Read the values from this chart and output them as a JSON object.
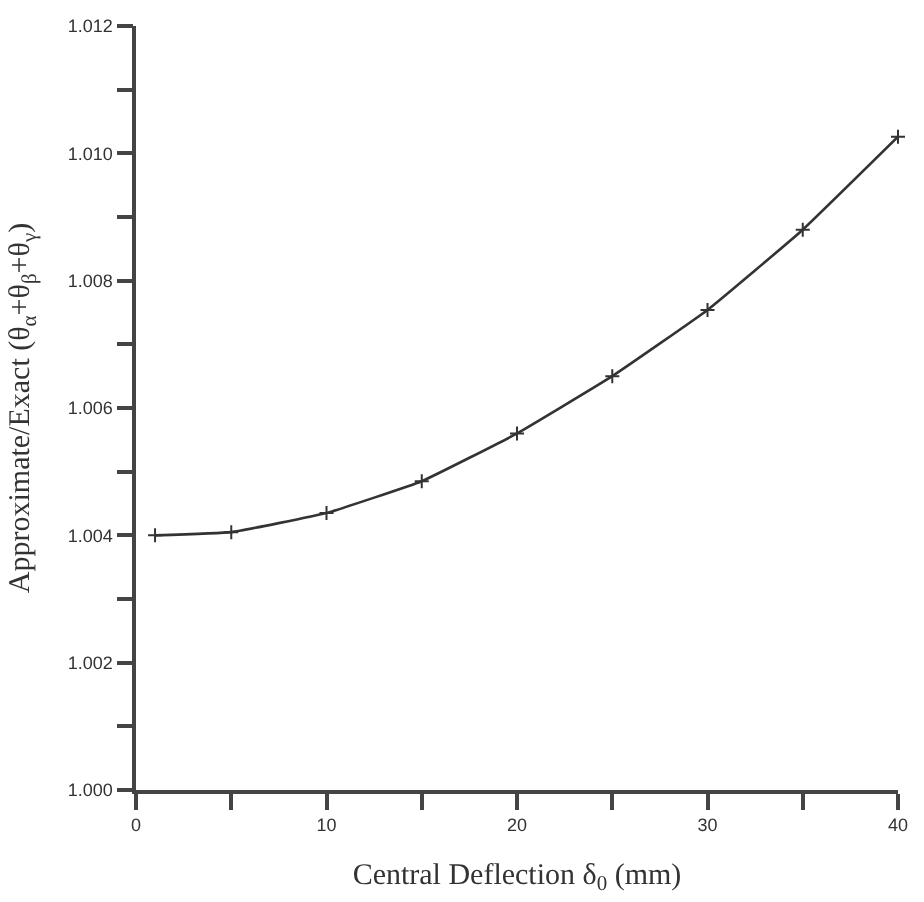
{
  "chart_data": {
    "type": "line",
    "xlabel": "Central Deflection δ$_{0}$ (mm)",
    "ylabel": "Approximate/Exact (θ$_{α}$+θ$_{β}$+θ$_{γ}$)",
    "x": [
      1,
      5,
      10,
      15,
      20,
      25,
      30,
      35,
      40
    ],
    "series": [
      {
        "color": "#333333",
        "values": [
          1.004,
          1.00405,
          1.00435,
          1.00485,
          1.0056,
          1.0065,
          1.00754,
          1.0088,
          1.01026
        ]
      }
    ],
    "xlim": [
      0,
      40
    ],
    "xticks": [
      0,
      {
        "value": 5,
        "label": null
      },
      10,
      {
        "value": 15,
        "label": null
      },
      20,
      {
        "value": 25,
        "label": null
      },
      30,
      {
        "value": 35,
        "label": null
      },
      40
    ],
    "ylim": [
      1.0,
      1.012
    ],
    "yticks": [
      {
        "value": 1.0,
        "label": "1.000"
      },
      {
        "value": 1.001,
        "label": null
      },
      {
        "value": 1.002,
        "label": "1.002"
      },
      {
        "value": 1.003,
        "label": null
      },
      {
        "value": 1.004,
        "label": "1.004"
      },
      {
        "value": 1.005,
        "label": null
      },
      {
        "value": 1.006,
        "label": "1.006"
      },
      {
        "value": 1.007,
        "label": null
      },
      {
        "value": 1.008,
        "label": "1.008"
      },
      {
        "value": 1.009,
        "label": null
      },
      {
        "value": 1.01,
        "label": "1.010"
      },
      {
        "value": 1.011,
        "label": null
      },
      {
        "value": 1.012,
        "label": "1.012"
      }
    ],
    "marker": "cross",
    "line_style": "solid"
  }
}
